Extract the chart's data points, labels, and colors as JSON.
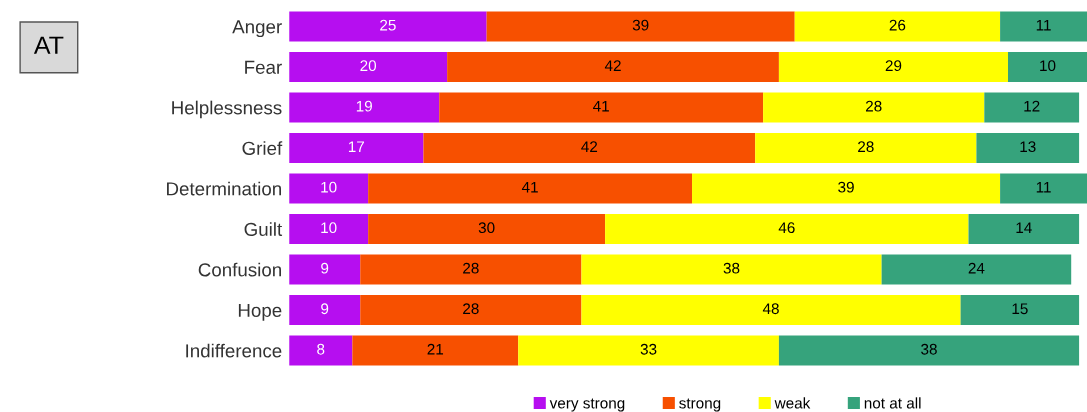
{
  "chart_data": {
    "type": "bar",
    "orientation": "horizontal",
    "stacked": true,
    "title": "AT",
    "categories": [
      "Anger",
      "Fear",
      "Helplessness",
      "Grief",
      "Determination",
      "Guilt",
      "Confusion",
      "Hope",
      "Indifference"
    ],
    "series": [
      {
        "name": "very strong",
        "color": "#b60ef0",
        "values": [
          25,
          20,
          19,
          17,
          10,
          10,
          9,
          9,
          8
        ]
      },
      {
        "name": "strong",
        "color": "#f75000",
        "values": [
          39,
          42,
          41,
          42,
          41,
          30,
          28,
          28,
          21
        ]
      },
      {
        "name": "weak",
        "color": "#ffff00",
        "values": [
          26,
          29,
          28,
          28,
          39,
          46,
          38,
          48,
          33
        ]
      },
      {
        "name": "not at all",
        "color": "#36a37c",
        "values": [
          11,
          10,
          12,
          13,
          11,
          14,
          24,
          15,
          38
        ]
      }
    ],
    "data_labels": true,
    "legend": "bottom",
    "grid": false,
    "tick_labels": "y"
  }
}
